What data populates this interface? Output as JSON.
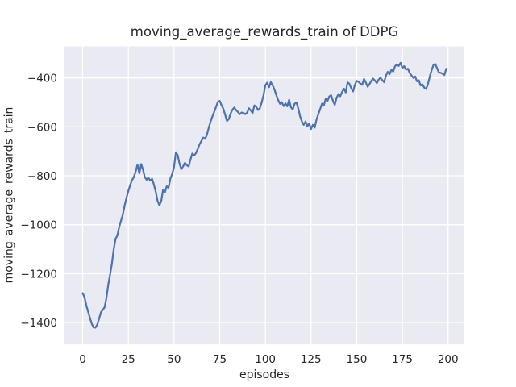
{
  "chart_data": {
    "type": "line",
    "title": "moving_average_rewards_train of DDPG",
    "xlabel": "episodes",
    "ylabel": "moving_average_rewards_train",
    "x_ticks": [
      0,
      25,
      50,
      75,
      100,
      125,
      150,
      175,
      200
    ],
    "y_ticks": [
      -400,
      -600,
      -800,
      -1000,
      -1200,
      -1400
    ],
    "xlim": [
      -9.95,
      208.95
    ],
    "ylim": [
      -1489.7,
      -271.1
    ],
    "grid": true,
    "legend_position": "none",
    "style": {
      "figure_background": "#ffffff",
      "axes_background": "#eaeaf2",
      "grid_color": "#ffffff",
      "line_color": "#4c72b0",
      "text_color": "#262626"
    },
    "series": [
      {
        "name": "moving_average_rewards_train",
        "x_start": 0,
        "x_step": 1,
        "values": [
          -1280,
          -1296,
          -1330,
          -1356,
          -1382,
          -1406,
          -1420,
          -1421,
          -1408,
          -1385,
          -1358,
          -1348,
          -1338,
          -1300,
          -1245,
          -1205,
          -1160,
          -1100,
          -1058,
          -1044,
          -1008,
          -984,
          -958,
          -920,
          -890,
          -862,
          -838,
          -818,
          -806,
          -782,
          -754,
          -790,
          -752,
          -774,
          -806,
          -816,
          -808,
          -820,
          -812,
          -836,
          -866,
          -902,
          -921,
          -903,
          -858,
          -868,
          -843,
          -849,
          -812,
          -792,
          -766,
          -704,
          -716,
          -750,
          -773,
          -761,
          -747,
          -757,
          -762,
          -734,
          -709,
          -717,
          -708,
          -690,
          -671,
          -658,
          -644,
          -649,
          -633,
          -604,
          -578,
          -558,
          -538,
          -518,
          -498,
          -494,
          -512,
          -526,
          -551,
          -576,
          -568,
          -545,
          -530,
          -521,
          -532,
          -539,
          -548,
          -541,
          -543,
          -548,
          -542,
          -524,
          -533,
          -543,
          -512,
          -518,
          -531,
          -524,
          -500,
          -470,
          -430,
          -419,
          -438,
          -417,
          -430,
          -448,
          -470,
          -490,
          -506,
          -499,
          -515,
          -504,
          -516,
          -489,
          -520,
          -529,
          -506,
          -500,
          -524,
          -557,
          -578,
          -592,
          -578,
          -598,
          -586,
          -609,
          -592,
          -603,
          -570,
          -548,
          -527,
          -505,
          -513,
          -486,
          -494,
          -476,
          -471,
          -494,
          -510,
          -481,
          -466,
          -475,
          -457,
          -444,
          -459,
          -418,
          -424,
          -442,
          -455,
          -428,
          -412,
          -416,
          -423,
          -428,
          -404,
          -419,
          -436,
          -425,
          -412,
          -403,
          -411,
          -421,
          -407,
          -399,
          -409,
          -417,
          -391,
          -375,
          -385,
          -366,
          -374,
          -352,
          -344,
          -351,
          -338,
          -359,
          -352,
          -366,
          -362,
          -379,
          -390,
          -400,
          -394,
          -414,
          -410,
          -431,
          -426,
          -440,
          -445,
          -425,
          -394,
          -369,
          -347,
          -343,
          -360,
          -378,
          -379,
          -383,
          -388,
          -362
        ]
      }
    ]
  }
}
